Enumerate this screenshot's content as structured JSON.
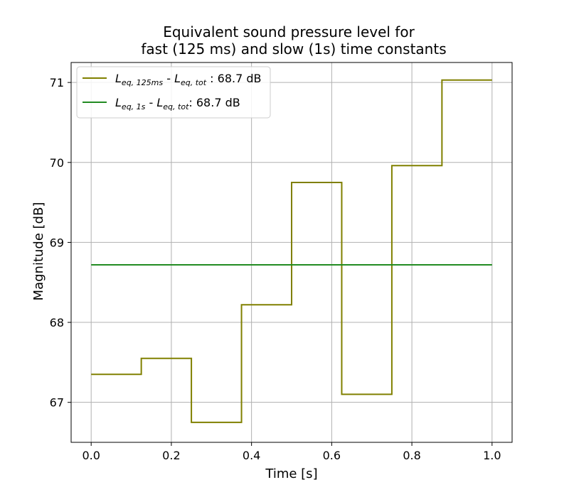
{
  "chart_data": {
    "type": "line",
    "title_line1": "Equivalent sound pressure level for",
    "title_line2": "fast (125 ms) and slow (1s) time constants",
    "xlabel": "Time [s]",
    "ylabel": "Magnitude [dB]",
    "xlim": [
      -0.05,
      1.05
    ],
    "ylim": [
      66.5,
      71.25
    ],
    "xticks": [
      0.0,
      0.2,
      0.4,
      0.6,
      0.8,
      1.0
    ],
    "xtick_labels": [
      "0.0",
      "0.2",
      "0.4",
      "0.6",
      "0.8",
      "1.0"
    ],
    "yticks": [
      67,
      68,
      69,
      70,
      71
    ],
    "ytick_labels": [
      "67",
      "68",
      "69",
      "70",
      "71"
    ],
    "grid": true,
    "legend_position": "top-left",
    "series": [
      {
        "name": "L_{eq,125ms} - L_{eq,tot} : 68.7 dB",
        "legend_main1": "L",
        "legend_sub1": "eq, 125ms",
        "legend_mid": " - ",
        "legend_main2": "L",
        "legend_sub2": "eq, tot",
        "legend_tail": " : 68.7 dB",
        "color": "#808000",
        "step": "post",
        "x": [
          0.0,
          0.125,
          0.25,
          0.375,
          0.5,
          0.625,
          0.75,
          0.875,
          1.0
        ],
        "y": [
          67.35,
          67.55,
          66.75,
          68.22,
          69.75,
          67.1,
          69.96,
          71.03,
          71.03
        ]
      },
      {
        "name": "L_{eq,1s} - L_{eq,tot}: 68.7 dB",
        "legend_main1": "L",
        "legend_sub1": "eq, 1s",
        "legend_mid": " - ",
        "legend_main2": "L",
        "legend_sub2": "eq, tot",
        "legend_tail": ": 68.7 dB",
        "color": "#228b22",
        "step": "post",
        "x": [
          0.0,
          1.0
        ],
        "y": [
          68.72,
          68.72
        ]
      }
    ]
  }
}
